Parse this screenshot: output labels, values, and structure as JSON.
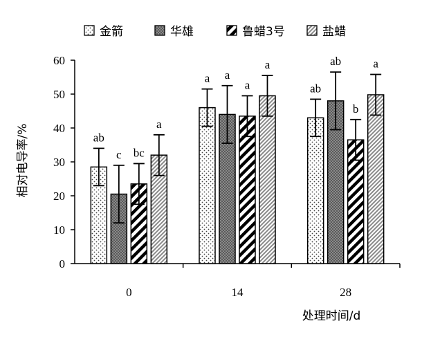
{
  "chart_data": {
    "type": "bar",
    "title": "",
    "xlabel": "处理时间/d",
    "ylabel": "相对电导率/%",
    "ylim": [
      0,
      60
    ],
    "yticks": [
      0,
      10,
      20,
      30,
      40,
      50,
      60
    ],
    "categories": [
      "0",
      "14",
      "28"
    ],
    "grid": false,
    "legend_position": "top",
    "series": [
      {
        "name": "金箭",
        "pattern": "dots",
        "color": "#ffffff",
        "values": [
          28.5,
          46.0,
          43.0
        ],
        "errors": [
          5.5,
          5.5,
          5.5
        ],
        "letters": [
          "ab",
          "a",
          "ab"
        ]
      },
      {
        "name": "华雄",
        "pattern": "dark-grid",
        "color": "#6e6e6e",
        "values": [
          20.5,
          44.0,
          48.0
        ],
        "errors": [
          8.5,
          8.5,
          8.5
        ],
        "letters": [
          "c",
          "a",
          "ab"
        ]
      },
      {
        "name": "鲁蜡3号",
        "pattern": "wide-diagonal",
        "color": "#000000",
        "values": [
          23.5,
          43.5,
          36.5
        ],
        "errors": [
          6.0,
          6.0,
          6.0
        ],
        "letters": [
          "bc",
          "a",
          "b"
        ]
      },
      {
        "name": "盐蜡",
        "pattern": "fine-diagonal",
        "color": "#9a9a9a",
        "values": [
          32.0,
          49.5,
          49.8
        ],
        "errors": [
          6.0,
          6.0,
          6.0
        ],
        "letters": [
          "a",
          "a",
          "a"
        ]
      }
    ]
  }
}
